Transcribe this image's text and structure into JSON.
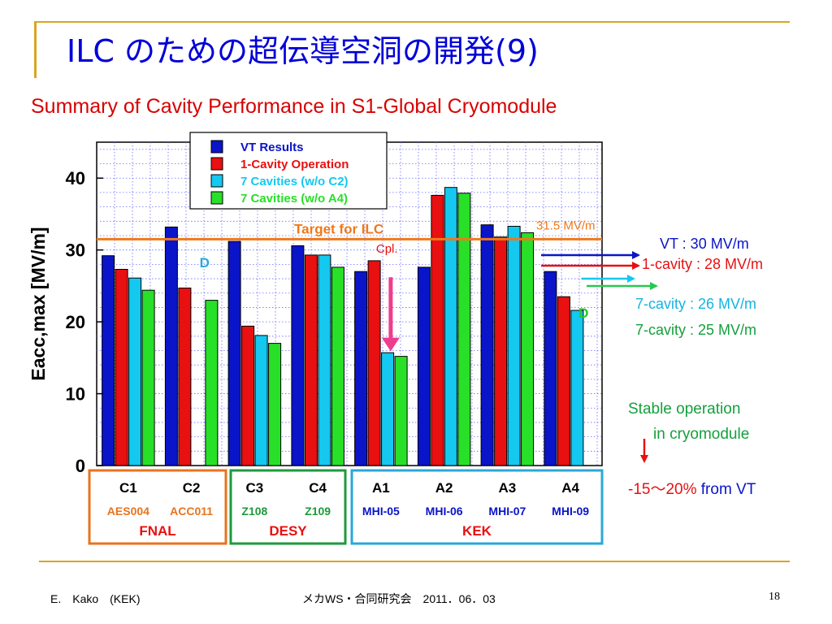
{
  "slide": {
    "title": "ILC のための超伝導空洞の開発(9)",
    "subtitle": "Summary of Cavity Performance in S1-Global Cryomodule",
    "page_number": "18"
  },
  "footer": {
    "author": "E.　Kako　(KEK)",
    "event": "メカWS・合同研究会　2011．06．03"
  },
  "chart_data": {
    "type": "bar",
    "ylabel": "Eacc,max  [MV/m]",
    "ylim": [
      0,
      45
    ],
    "yticks": [
      "0",
      "10",
      "20",
      "30",
      "40"
    ],
    "categories": [
      "C1",
      "C2",
      "C3",
      "C4",
      "A1",
      "A2",
      "A3",
      "A4"
    ],
    "cavity_ids": [
      "AES004",
      "ACC011",
      "Z108",
      "Z109",
      "MHI-05",
      "MHI-06",
      "MHI-07",
      "MHI-09"
    ],
    "groups": [
      {
        "name": "FNAL",
        "color": "#e8731e",
        "members": 2
      },
      {
        "name": "DESY",
        "color": "#1e9a3c",
        "members": 2
      },
      {
        "name": "KEK",
        "color": "#2aa8d8",
        "members": 4
      }
    ],
    "series": [
      {
        "name": "VT Results",
        "color": "#0a14c8",
        "values": [
          29.2,
          33.2,
          31.2,
          30.6,
          27.0,
          27.6,
          33.5,
          27.0
        ]
      },
      {
        "name": "1-Cavity Operation",
        "color": "#e81010",
        "values": [
          27.3,
          24.7,
          19.4,
          29.3,
          28.5,
          37.6,
          31.8,
          23.5
        ]
      },
      {
        "name": "7 Cavities (w/o C2)",
        "color": "#14c8f0",
        "values": [
          26.1,
          null,
          18.1,
          29.3,
          15.7,
          38.7,
          33.3,
          21.6
        ]
      },
      {
        "name": "7 Cavities (w/o A4)",
        "color": "#28e028",
        "values": [
          24.4,
          23.0,
          17.0,
          27.6,
          15.2,
          37.9,
          32.4,
          null
        ]
      }
    ],
    "target": {
      "value": 31.5,
      "label": "Target for ILC",
      "value_label": "31.5 MV/m",
      "color": "#f07818"
    },
    "omitted_markers": [
      {
        "category": "C2",
        "label": "D",
        "color": "#2aa8d8"
      },
      {
        "category": "A4",
        "label": "D",
        "color": "#28c828"
      }
    ],
    "coupler_note": {
      "category": "A1",
      "label": "Cpl.",
      "color": "#f03c8c"
    },
    "grid": true,
    "legend": "top-center"
  },
  "annotations": {
    "vt": "VT : 30 MV/m",
    "one_cavity": "1-cavity : 28 MV/m",
    "seven_a": "7-cavity : 26 MV/m",
    "seven_b": "7-cavity : 25 MV/m",
    "stable_1": "Stable operation",
    "stable_2": "in cryomodule",
    "drop_pct": "-15～20%",
    "drop_suffix": "from VT"
  },
  "colors": {
    "title": "#0000d8",
    "subtitle": "#d80000",
    "vt": "#0a14c8",
    "one_cavity": "#e81010",
    "seven_a": "#14b4e0",
    "seven_b": "#14a03c",
    "stable": "#14a03c"
  }
}
